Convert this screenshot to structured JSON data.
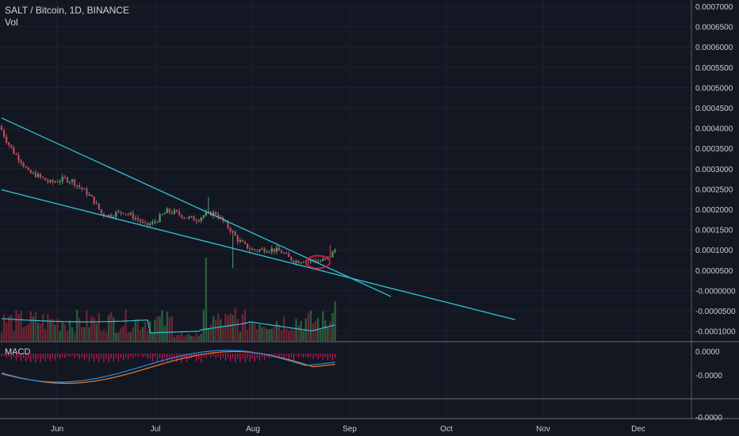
{
  "header": {
    "title": "SALT / Bitcoin, 1D, BINANCE",
    "volume_label": "Vol"
  },
  "macd_label": "MACD",
  "chart_data": {
    "type": "candlestick",
    "symbol": "SALT / Bitcoin",
    "interval": "1D",
    "exchange": "BINANCE",
    "price_axis_ticks": [
      "0.0007000",
      "0.0006500",
      "0.0006000",
      "0.0005500",
      "0.0005000",
      "0.0004500",
      "0.0004000",
      "0.0003500",
      "0.0003000",
      "0.0002500",
      "0.0002000",
      "0.0001500",
      "0.0001000",
      "0.0000500",
      "-0.0000000",
      "-0.0000500",
      "-0.0001000"
    ],
    "macd_axis_ticks": [
      "0.0000",
      "-0.0000",
      "-0.0000"
    ],
    "x_axis_labels": [
      "Jun",
      "Jul",
      "Aug",
      "Sep",
      "Oct",
      "Nov",
      "Dec"
    ],
    "price_range": [
      -0.00012,
      0.0007
    ],
    "close_path": [
      [
        0,
        0.000395
      ],
      [
        2,
        0.00037
      ],
      [
        5,
        0.00034
      ],
      [
        8,
        0.00032
      ],
      [
        11,
        0.00029
      ],
      [
        14,
        0.000285
      ],
      [
        17,
        0.000275
      ],
      [
        20,
        0.000265
      ],
      [
        23,
        0.00027
      ],
      [
        26,
        0.000275
      ],
      [
        29,
        0.00027
      ],
      [
        32,
        0.000255
      ],
      [
        35,
        0.00024
      ],
      [
        38,
        0.00022
      ],
      [
        41,
        0.00019
      ],
      [
        44,
        0.000185
      ],
      [
        47,
        0.00019
      ],
      [
        50,
        0.000195
      ],
      [
        53,
        0.000185
      ],
      [
        56,
        0.000175
      ],
      [
        59,
        0.00016
      ],
      [
        62,
        0.000165
      ],
      [
        65,
        0.00018
      ],
      [
        68,
        0.000195
      ],
      [
        71,
        0.000192
      ],
      [
        74,
        0.000185
      ],
      [
        77,
        0.000178
      ],
      [
        80,
        0.000175
      ],
      [
        83,
        0.000185
      ],
      [
        86,
        0.00019
      ],
      [
        88,
        0.00019
      ],
      [
        91,
        0.00017
      ],
      [
        94,
        0.00015
      ],
      [
        97,
        0.000125
      ],
      [
        100,
        0.00011
      ],
      [
        103,
        0.0001
      ],
      [
        106,
        0.0001
      ],
      [
        109,
        0.000102
      ],
      [
        112,
        0.0001
      ],
      [
        115,
        9.5e-05
      ],
      [
        118,
        8e-05
      ],
      [
        121,
        7.2e-05
      ],
      [
        124,
        7.5e-05
      ],
      [
        126,
        7.2e-05
      ],
      [
        128,
        7.5e-05
      ],
      [
        130,
        7.2e-05
      ],
      [
        133,
        7.5e-05
      ],
      [
        135,
        8.5e-05
      ],
      [
        137,
        0.0001
      ]
    ],
    "trendlines": [
      {
        "x": [
          0,
          160
        ],
        "y": [
          0.000425,
          -1.5e-05
        ]
      },
      {
        "x": [
          0,
          211
        ],
        "y": [
          0.000248,
          -7.2e-05
        ]
      }
    ],
    "annotation": {
      "type": "ellipse",
      "color": "#e0144a",
      "x": 130,
      "y": 7e-05
    },
    "colors": {
      "background": "#131722",
      "up": "#5a9a6e",
      "down": "#c0485a",
      "trendline": "#2ec4d6",
      "macd": "#2f8be0",
      "signal": "#f07c2a",
      "vol_ma": "#2ec4d6"
    }
  }
}
